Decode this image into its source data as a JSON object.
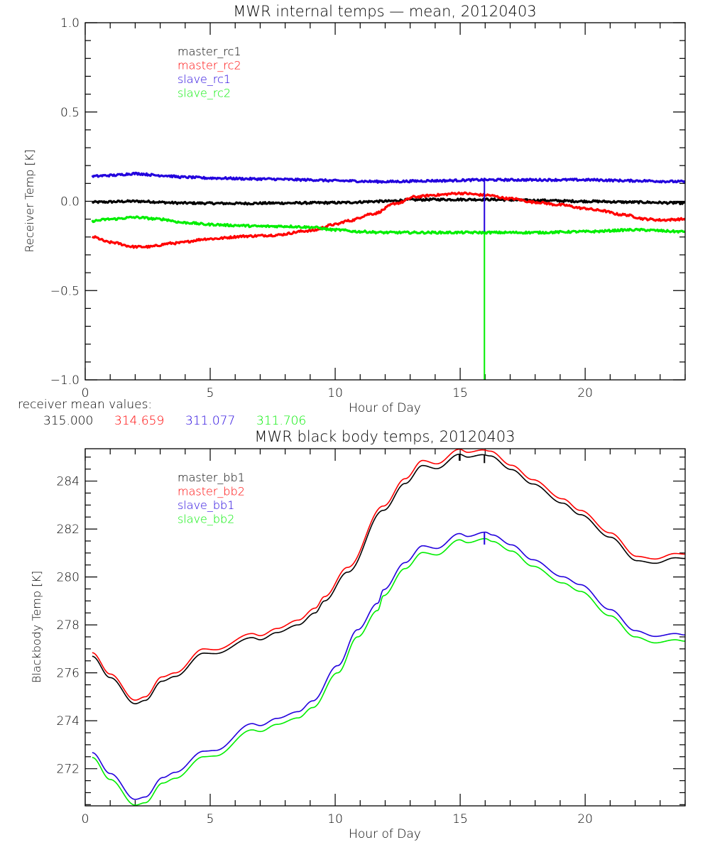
{
  "chart_data": [
    {
      "type": "line",
      "title": "MWR internal temps — mean, 20120403",
      "xlabel": "Hour of Day",
      "ylabel": "Receiver Temp [K]",
      "xlim": [
        0,
        24
      ],
      "ylim": [
        -1.0,
        1.0
      ],
      "xticks": [
        0,
        5,
        10,
        15,
        20
      ],
      "xtick_labels": [
        "0",
        "5",
        "10",
        "15",
        "20"
      ],
      "x_minor_step": 1,
      "yticks": [
        -1.0,
        -0.5,
        0.0,
        0.5,
        1.0
      ],
      "ytick_labels": [
        "-1.0",
        "-0.5",
        "0.0",
        "0.5",
        "1.0"
      ],
      "y_minor_step": 0.1,
      "grid": false,
      "legend_position": "top-left",
      "noise": 0.006,
      "series": [
        {
          "name": "master_rc1",
          "color": "#000000",
          "x": [
            0.28,
            2,
            4,
            6,
            8,
            10,
            12,
            13,
            14,
            16,
            18,
            20,
            22,
            24
          ],
          "y": [
            -0.005,
            0.0,
            -0.01,
            -0.012,
            -0.01,
            -0.008,
            0.0,
            0.008,
            0.01,
            0.01,
            0.005,
            0.0,
            -0.005,
            -0.01
          ]
        },
        {
          "name": "master_rc2",
          "color": "#ff0000",
          "x": [
            0.28,
            1,
            2,
            2.5,
            3.5,
            5,
            6.5,
            7.5,
            9,
            10,
            10.5,
            11.5,
            12.5,
            13.2,
            14,
            15,
            16,
            17,
            18,
            19,
            20,
            20.5,
            21.5,
            22.5,
            23,
            24
          ],
          "y": [
            -0.2,
            -0.23,
            -0.255,
            -0.255,
            -0.235,
            -0.21,
            -0.195,
            -0.19,
            -0.165,
            -0.13,
            -0.11,
            -0.07,
            -0.01,
            0.025,
            0.035,
            0.045,
            0.035,
            0.015,
            -0.005,
            -0.02,
            -0.04,
            -0.05,
            -0.075,
            -0.1,
            -0.105,
            -0.1
          ]
        },
        {
          "name": "slave_rc1",
          "color": "#2200dd",
          "x": [
            0.28,
            1,
            2,
            3,
            4,
            5,
            7,
            9,
            10,
            12,
            14,
            16,
            18,
            20,
            22,
            24
          ],
          "y": [
            0.14,
            0.145,
            0.155,
            0.145,
            0.135,
            0.13,
            0.125,
            0.12,
            0.115,
            0.11,
            0.115,
            0.12,
            0.12,
            0.12,
            0.115,
            0.11
          ]
        },
        {
          "name": "slave_rc2",
          "color": "#00ee00",
          "x": [
            0.28,
            1,
            2,
            3,
            4,
            5,
            6,
            7,
            8,
            9,
            10,
            11,
            12,
            14,
            16,
            18,
            20,
            22,
            24
          ],
          "y": [
            -0.11,
            -0.1,
            -0.09,
            -0.1,
            -0.12,
            -0.13,
            -0.135,
            -0.14,
            -0.14,
            -0.145,
            -0.16,
            -0.17,
            -0.175,
            -0.175,
            -0.175,
            -0.175,
            -0.17,
            -0.16,
            -0.17
          ]
        }
      ],
      "spikes": [
        {
          "series": "slave_rc1",
          "x": 15.97,
          "from": 0.12,
          "to": -0.17
        },
        {
          "series": "slave_rc2",
          "x": 15.97,
          "from": -0.175,
          "to": -1.0
        }
      ]
    },
    {
      "type": "line",
      "title": "MWR black body temps, 20120403",
      "xlabel": "Hour of Day",
      "ylabel": "Blackbody Temp [K]",
      "xlim": [
        0,
        24
      ],
      "ylim": [
        270.45,
        285.35
      ],
      "xticks": [
        0,
        5,
        10,
        15,
        20
      ],
      "xtick_labels": [
        "0",
        "5",
        "10",
        "15",
        "20"
      ],
      "x_minor_step": 1,
      "yticks": [
        272,
        274,
        276,
        278,
        280,
        282,
        284
      ],
      "ytick_labels": [
        "272",
        "274",
        "276",
        "278",
        "280",
        "282",
        "284"
      ],
      "y_minor_step": 0.5,
      "grid": false,
      "legend_position": "top-left",
      "noise": 0.0,
      "series": [
        {
          "name": "master_bb1",
          "color": "#000000",
          "x": [
            0.28,
            1,
            2,
            2.4,
            3.07,
            3.6,
            4.74,
            5.2,
            6.68,
            7.0,
            7.67,
            8.52,
            9.2,
            9.57,
            10.5,
            11.93,
            12.8,
            13.5,
            14.06,
            14.97,
            15.3,
            15.9,
            16.2,
            17.05,
            17.9,
            19.1,
            19.8,
            21.0,
            22.07,
            22.8,
            23.6,
            24
          ],
          "y": [
            276.69,
            275.8,
            274.71,
            274.85,
            275.65,
            275.85,
            276.82,
            276.8,
            277.47,
            277.38,
            277.68,
            278.0,
            278.5,
            279.0,
            280.2,
            282.78,
            283.9,
            284.65,
            284.52,
            285.12,
            285.0,
            285.1,
            285.05,
            284.48,
            283.88,
            283.08,
            282.6,
            281.66,
            280.68,
            280.57,
            280.8,
            280.77
          ]
        },
        {
          "name": "master_bb2",
          "color": "#ff0000",
          "x": [
            0.28,
            1,
            2,
            2.4,
            3.07,
            3.6,
            4.74,
            5.2,
            6.68,
            7.0,
            7.67,
            8.52,
            9.2,
            9.57,
            10.5,
            11.93,
            12.8,
            13.5,
            14.06,
            14.97,
            15.3,
            15.9,
            16.2,
            17.05,
            17.9,
            19.1,
            19.8,
            21.0,
            22.07,
            22.8,
            23.6,
            24
          ],
          "y": [
            276.84,
            275.95,
            274.86,
            275.0,
            275.83,
            276.0,
            277.0,
            276.96,
            277.64,
            277.55,
            277.85,
            278.2,
            278.7,
            279.18,
            280.4,
            282.96,
            284.1,
            284.86,
            284.72,
            285.33,
            285.2,
            285.3,
            285.25,
            284.66,
            284.06,
            283.26,
            282.78,
            281.84,
            280.86,
            280.75,
            280.98,
            280.95
          ]
        },
        {
          "name": "slave_bb1",
          "color": "#2200dd",
          "x": [
            0.28,
            1,
            2,
            2.4,
            3.1,
            3.6,
            4.74,
            5.2,
            6.68,
            7.0,
            7.67,
            8.52,
            9.1,
            10.1,
            10.9,
            11.7,
            11.93,
            12.8,
            13.5,
            14.06,
            14.97,
            15.3,
            16.0,
            16.3,
            17.05,
            17.9,
            19.1,
            19.8,
            21.0,
            22.0,
            22.8,
            23.6,
            24
          ],
          "y": [
            272.67,
            271.8,
            270.72,
            270.82,
            271.63,
            271.85,
            272.73,
            272.76,
            273.88,
            273.8,
            274.1,
            274.38,
            274.83,
            276.3,
            277.8,
            278.9,
            279.47,
            280.6,
            281.3,
            281.19,
            281.81,
            281.69,
            281.87,
            281.75,
            281.34,
            280.72,
            280.01,
            279.68,
            278.64,
            277.76,
            277.52,
            277.64,
            277.58
          ]
        },
        {
          "name": "slave_bb2",
          "color": "#00ee00",
          "x": [
            0.28,
            1,
            2,
            2.4,
            3.1,
            3.6,
            4.74,
            5.2,
            6.68,
            7.0,
            7.67,
            8.52,
            9.1,
            10.1,
            10.9,
            11.7,
            11.93,
            12.8,
            13.5,
            14.06,
            14.97,
            15.3,
            16.0,
            16.3,
            17.05,
            17.9,
            19.1,
            19.8,
            21.0,
            22.0,
            22.8,
            23.6,
            24
          ],
          "y": [
            272.47,
            271.55,
            270.48,
            270.58,
            271.4,
            271.6,
            272.5,
            272.53,
            273.62,
            273.55,
            273.85,
            274.12,
            274.55,
            276.0,
            277.5,
            278.6,
            279.22,
            280.35,
            281.02,
            280.92,
            281.55,
            281.43,
            281.6,
            281.48,
            281.08,
            280.45,
            279.75,
            279.4,
            278.38,
            277.5,
            277.25,
            277.38,
            277.32
          ]
        }
      ],
      "spikes": [
        {
          "series": "master_bb1",
          "x": 14.97,
          "from": 285.12,
          "to": 284.85
        },
        {
          "series": "master_bb1",
          "x": 15.97,
          "from": 285.1,
          "to": 284.75
        },
        {
          "series": "slave_bb1",
          "x": 15.97,
          "from": 281.87,
          "to": 281.35
        }
      ]
    }
  ],
  "receiver_mean": {
    "label": "receiver mean values:",
    "values": [
      {
        "text": "315.000",
        "color": "#000000"
      },
      {
        "text": "314.659",
        "color": "#ff0000"
      },
      {
        "text": "311.077",
        "color": "#2200dd"
      },
      {
        "text": "311.706",
        "color": "#00ee00"
      }
    ]
  }
}
